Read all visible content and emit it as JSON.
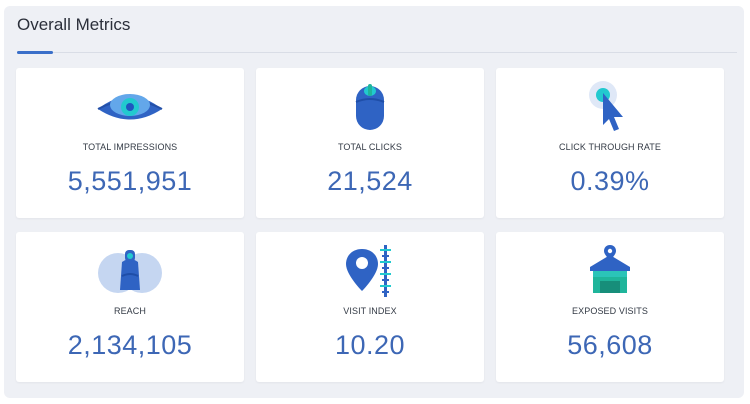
{
  "header": {
    "title": "Overall Metrics"
  },
  "metrics": [
    {
      "label": "TOTAL IMPRESSIONS",
      "value": "5,551,951",
      "icon": "eye-icon"
    },
    {
      "label": "TOTAL CLICKS",
      "value": "21,524",
      "icon": "mouse-icon"
    },
    {
      "label": "CLICK THROUGH RATE",
      "value": "0.39%",
      "icon": "cursor-click-icon"
    },
    {
      "label": "REACH",
      "value": "2,134,105",
      "icon": "reach-icon"
    },
    {
      "label": "VISIT INDEX",
      "value": "10.20",
      "icon": "map-pin-ruler-icon"
    },
    {
      "label": "EXPOSED VISITS",
      "value": "56,608",
      "icon": "store-icon"
    }
  ],
  "colors": {
    "accent": "#3a6fc9",
    "value_text": "#3d67b5",
    "panel_bg": "#eef0f5",
    "icon_dark": "#2b56b3",
    "icon_light": "#bcd0ee",
    "icon_teal": "#2bc4b8",
    "icon_green": "#1fb59b"
  }
}
